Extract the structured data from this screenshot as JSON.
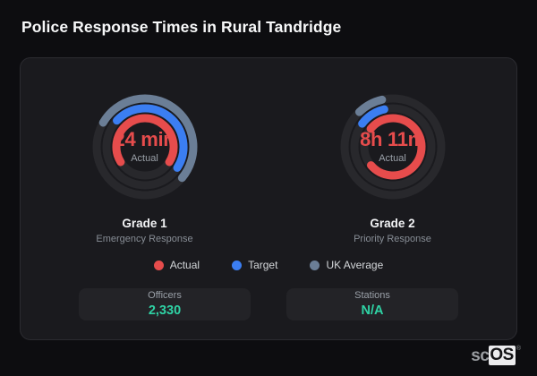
{
  "title": "Police Response Times in Rural Tandridge",
  "legend": [
    {
      "label": "Actual",
      "color": "#e64c4c"
    },
    {
      "label": "Target",
      "color": "#3b7ef2"
    },
    {
      "label": "UK Average",
      "color": "#6b7e96"
    }
  ],
  "stats": [
    {
      "label": "Officers",
      "value": "2,330"
    },
    {
      "label": "Stations",
      "value": "N/A"
    }
  ],
  "watermark": {
    "prefix": "sc",
    "suffix": "OS",
    "mark": "®"
  },
  "colors": {
    "page_background": "#0d0d10",
    "card_background": "#1a1a1e",
    "track": "#28282c",
    "actual_red": "#e64c4c",
    "target_blue": "#3b7ef2",
    "uk_average_slate": "#6b7e96",
    "stat_value_teal": "#2fd3a5"
  },
  "chart_data": [
    {
      "type": "radial-gauge",
      "title": "Grade 1",
      "subtitle": "Emergency Response",
      "center_value": "24 min",
      "center_label": "Actual",
      "rings": [
        {
          "name": "UK Average",
          "color": "#6b7e96",
          "start_deg": 300,
          "sweep_deg": 190
        },
        {
          "name": "Target",
          "color": "#3b7ef2",
          "start_deg": 313,
          "sweep_deg": 170
        },
        {
          "name": "Actual",
          "color": "#e64c4c",
          "start_deg": 238,
          "sweep_deg": 244
        }
      ]
    },
    {
      "type": "radial-gauge",
      "title": "Grade 2",
      "subtitle": "Priority Response",
      "center_value": "8h 11m",
      "center_label": "Actual",
      "rings": [
        {
          "name": "UK Average",
          "color": "#6b7e96",
          "start_deg": 316,
          "sweep_deg": 31
        },
        {
          "name": "Target",
          "color": "#3b7ef2",
          "start_deg": 307,
          "sweep_deg": 40
        },
        {
          "name": "Actual",
          "color": "#e64c4c",
          "start_deg": 309,
          "sweep_deg": 281
        }
      ]
    }
  ]
}
